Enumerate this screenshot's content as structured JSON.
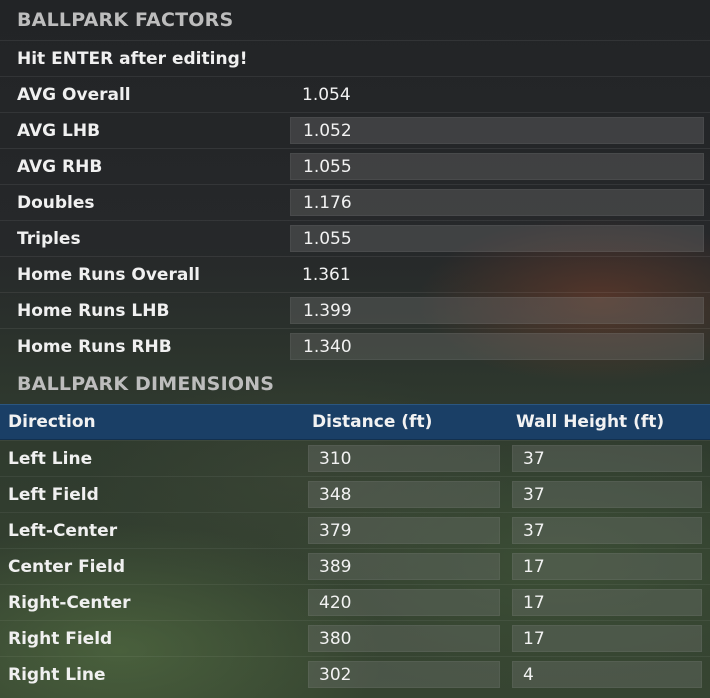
{
  "factors": {
    "title": "BALLPARK FACTORS",
    "note": "Hit ENTER after editing!",
    "rows": [
      {
        "label": "AVG Overall",
        "value": "1.054"
      },
      {
        "label": "AVG LHB",
        "value": "1.052"
      },
      {
        "label": "AVG RHB",
        "value": "1.055"
      },
      {
        "label": "Doubles",
        "value": "1.176"
      },
      {
        "label": "Triples",
        "value": "1.055"
      },
      {
        "label": "Home Runs Overall",
        "value": "1.361"
      },
      {
        "label": "Home Runs LHB",
        "value": "1.399"
      },
      {
        "label": "Home Runs RHB",
        "value": "1.340"
      }
    ]
  },
  "dimensions": {
    "title": "BALLPARK DIMENSIONS",
    "columns": [
      "Direction",
      "Distance (ft)",
      "Wall Height (ft)"
    ],
    "rows": [
      {
        "direction": "Left Line",
        "distance": "310",
        "wall_height": "37"
      },
      {
        "direction": "Left Field",
        "distance": "348",
        "wall_height": "37"
      },
      {
        "direction": "Left-Center",
        "distance": "379",
        "wall_height": "37"
      },
      {
        "direction": "Center Field",
        "distance": "389",
        "wall_height": "17"
      },
      {
        "direction": "Right-Center",
        "distance": "420",
        "wall_height": "17"
      },
      {
        "direction": "Right Field",
        "distance": "380",
        "wall_height": "17"
      },
      {
        "direction": "Right Line",
        "distance": "302",
        "wall_height": "4"
      }
    ]
  }
}
